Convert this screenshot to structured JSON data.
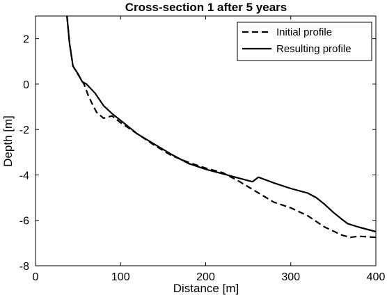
{
  "chart_data": {
    "type": "line",
    "title": "Cross-section 1 after 5 years",
    "xlabel": "Distance [m]",
    "ylabel": "Depth [m]",
    "xlim": [
      0,
      400
    ],
    "ylim": [
      -8,
      3
    ],
    "xticks": [
      0,
      100,
      200,
      300,
      400
    ],
    "yticks": [
      -8,
      -6,
      -4,
      -2,
      0,
      2
    ],
    "legend_position": "top-right",
    "grid": false,
    "series": [
      {
        "name": "Initial profile",
        "style": "dashed",
        "color": "#000000",
        "x": [
          37,
          40,
          44,
          47,
          52,
          57,
          62,
          67,
          72,
          80,
          90,
          100,
          120,
          140,
          160,
          180,
          200,
          220,
          240,
          260,
          280,
          300,
          320,
          340,
          360,
          370,
          380,
          400
        ],
        "y": [
          3,
          1.8,
          0.8,
          0.6,
          0.3,
          0,
          -0.5,
          -0.9,
          -1.25,
          -1.5,
          -1.4,
          -1.7,
          -2.2,
          -2.7,
          -3.15,
          -3.45,
          -3.7,
          -3.9,
          -4.3,
          -4.75,
          -5.2,
          -5.45,
          -5.8,
          -6.3,
          -6.65,
          -6.75,
          -6.7,
          -6.75
        ]
      },
      {
        "name": "Resulting profile",
        "style": "solid",
        "color": "#000000",
        "x": [
          37,
          40,
          44,
          50,
          55,
          60,
          70,
          80,
          90,
          100,
          120,
          140,
          160,
          180,
          200,
          220,
          240,
          255,
          262,
          280,
          300,
          320,
          330,
          340,
          350,
          360,
          367,
          380,
          400
        ],
        "y": [
          3,
          1.8,
          0.8,
          0.45,
          0.1,
          0,
          -0.4,
          -0.95,
          -1.3,
          -1.6,
          -2.2,
          -2.65,
          -3.1,
          -3.5,
          -3.75,
          -3.95,
          -4.15,
          -4.3,
          -4.1,
          -4.35,
          -4.6,
          -4.8,
          -5,
          -5.3,
          -5.65,
          -5.95,
          -6.15,
          -6.3,
          -6.5
        ]
      }
    ]
  }
}
